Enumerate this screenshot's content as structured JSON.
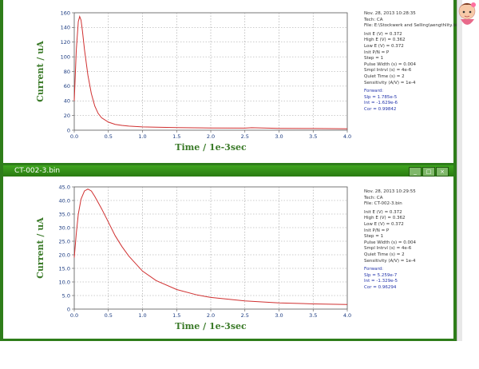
{
  "windows": [
    {
      "title": "",
      "info": {
        "date": "Nov. 28, 2013   10:28:35",
        "tech": "Tech: CA",
        "file": "File: E:\\Stockwerk and Selling\\aengthlity.bin",
        "params": [
          "Init E (V) = 0.372",
          "High E (V) = 0.362",
          "Low E (V) = 0.372",
          "Init P/N = P",
          "Step = 1",
          "Pulse Width (s) = 0.004",
          "Smpl Intrvl (s) = 4e-6",
          "Quiet Time (s) = 2",
          "Sensitivity (A/V) = 1e-4"
        ],
        "forward_label": "Forward:",
        "fit": [
          "Slp = 1.785e-5",
          "Int = -1.629e-6",
          "Cor = 0.99842"
        ]
      },
      "chart_data": {
        "type": "line",
        "xlabel": "Time / 1e-3sec",
        "ylabel": "Current / uA",
        "xlim": [
          0,
          4.0
        ],
        "ylim": [
          0,
          160
        ],
        "xticks": [
          0.0,
          0.5,
          1.0,
          1.5,
          2.0,
          2.5,
          3.0,
          3.5,
          4.0
        ],
        "xtick_labels": [
          "0.0",
          "0.5",
          "1.0",
          "1.5",
          "2.0",
          "2.5",
          "3.0",
          "3.5",
          "4.0"
        ],
        "yticks": [
          0,
          20,
          40,
          60,
          80,
          100,
          120,
          140,
          160
        ],
        "ytick_labels": [
          "0",
          "20",
          "40",
          "60",
          "80",
          "100",
          "120",
          "140",
          "160"
        ],
        "grid": true,
        "line_color": "#d03030",
        "x": [
          0.0,
          0.03,
          0.06,
          0.08,
          0.1,
          0.12,
          0.15,
          0.2,
          0.25,
          0.3,
          0.35,
          0.4,
          0.5,
          0.6,
          0.7,
          0.8,
          1.0,
          1.2,
          1.5,
          2.0,
          2.5,
          2.6,
          3.0,
          3.5,
          4.0
        ],
        "y": [
          40,
          110,
          148,
          155,
          150,
          135,
          110,
          75,
          50,
          33,
          23,
          17,
          11,
          8,
          6.5,
          5.5,
          4.5,
          4.0,
          3.5,
          3.0,
          2.8,
          3.4,
          2.5,
          2.3,
          2.0
        ]
      }
    },
    {
      "title": "CT-002-3.bin",
      "controls": [
        "_",
        "□",
        "×"
      ],
      "info": {
        "date": "Nov. 28, 2013   10:29:55",
        "tech": "Tech: CA",
        "file": "File: CT-002-3.bin",
        "params": [
          "Init E (V) = 0.372",
          "High E (V) = 0.362",
          "Low E (V) = 0.372",
          "Init P/N = P",
          "Step = 1",
          "Pulse Width (s) = 0.004",
          "Smpl Intrvl (s) = 4e-6",
          "Quiet Time (s) = 2",
          "Sensitivity (A/V) = 1e-4"
        ],
        "forward_label": "Forward:",
        "fit": [
          "Slp = 5.259e-7",
          "Int = -1.329e-5",
          "Cor = 0.96294"
        ]
      },
      "chart_data": {
        "type": "line",
        "xlabel": "Time / 1e-3sec",
        "ylabel": "Current / uA",
        "xlim": [
          0,
          4.0
        ],
        "ylim": [
          0,
          45
        ],
        "xticks": [
          0.0,
          0.5,
          1.0,
          1.5,
          2.0,
          2.5,
          3.0,
          3.5,
          4.0
        ],
        "xtick_labels": [
          "0.0",
          "0.5",
          "1.0",
          "1.5",
          "2.0",
          "2.5",
          "3.0",
          "3.5",
          "4.0"
        ],
        "yticks": [
          0,
          5,
          10,
          15,
          20,
          25,
          30,
          35,
          40,
          45
        ],
        "ytick_labels": [
          "0",
          "5.0",
          "10.0",
          "15.0",
          "20.0",
          "25.0",
          "30.0",
          "35.0",
          "40.0",
          "45.0"
        ],
        "grid": true,
        "line_color": "#d03030",
        "x": [
          0.0,
          0.03,
          0.06,
          0.1,
          0.15,
          0.2,
          0.25,
          0.3,
          0.4,
          0.5,
          0.6,
          0.7,
          0.8,
          1.0,
          1.2,
          1.5,
          1.8,
          2.0,
          2.5,
          3.0,
          3.5,
          4.0
        ],
        "y": [
          19,
          28,
          35,
          40.5,
          43.5,
          44.2,
          43.5,
          41.5,
          37,
          32,
          27,
          23,
          19.5,
          14,
          10.5,
          7.2,
          5.2,
          4.3,
          3.0,
          2.3,
          1.9,
          1.7
        ]
      }
    }
  ]
}
